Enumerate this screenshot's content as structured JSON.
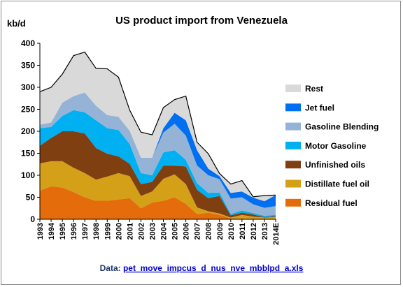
{
  "chart_data": {
    "type": "area",
    "stacked": true,
    "title": "US product import from Venezuela",
    "ylabel": "kb/d",
    "xlabel": "",
    "ylim": [
      0,
      400
    ],
    "yticks": [
      0,
      50,
      100,
      150,
      200,
      250,
      300,
      350,
      400
    ],
    "categories": [
      "1993",
      "1994",
      "1995",
      "1996",
      "1997",
      "1998",
      "1999",
      "2000",
      "2001",
      "2002",
      "2003",
      "2004",
      "2005",
      "2006",
      "2007",
      "2008",
      "2009",
      "2010",
      "2011",
      "2012",
      "2013",
      "2014E"
    ],
    "series": [
      {
        "name": "Residual fuel",
        "color": "#e46c0a",
        "values": [
          65,
          75,
          72,
          62,
          50,
          42,
          42,
          45,
          48,
          25,
          38,
          42,
          50,
          35,
          12,
          15,
          10,
          2,
          2,
          2,
          2,
          2
        ]
      },
      {
        "name": "Distillate fuel oil",
        "color": "#d4a017",
        "values": [
          62,
          57,
          60,
          55,
          55,
          48,
          55,
          60,
          50,
          28,
          25,
          50,
          52,
          45,
          15,
          3,
          3,
          2,
          8,
          4,
          2,
          3
        ]
      },
      {
        "name": "Unfinished oils",
        "color": "#7f3f10",
        "values": [
          40,
          53,
          68,
          83,
          90,
          72,
          52,
          38,
          28,
          27,
          22,
          30,
          20,
          40,
          40,
          30,
          40,
          5,
          5,
          5,
          1,
          2
        ]
      },
      {
        "name": "Motor Gasoline",
        "color": "#00b0f0",
        "values": [
          40,
          25,
          35,
          48,
          48,
          63,
          58,
          60,
          45,
          25,
          15,
          30,
          35,
          15,
          15,
          12,
          8,
          3,
          5,
          3,
          3,
          3
        ]
      },
      {
        "name": "Gasoline Blending",
        "color": "#95b3d7",
        "values": [
          8,
          10,
          30,
          32,
          45,
          33,
          30,
          30,
          30,
          35,
          40,
          45,
          60,
          55,
          40,
          40,
          30,
          35,
          30,
          20,
          18,
          20
        ]
      },
      {
        "name": "Jet fuel",
        "color": "#0070f0",
        "values": [
          0,
          0,
          0,
          0,
          0,
          0,
          0,
          0,
          0,
          0,
          0,
          10,
          25,
          35,
          35,
          15,
          7,
          13,
          13,
          15,
          15,
          25
        ]
      },
      {
        "name": "Rest",
        "color": "#d9d9d9",
        "values": [
          75,
          80,
          65,
          92,
          92,
          85,
          105,
          90,
          47,
          58,
          52,
          47,
          30,
          55,
          18,
          34,
          6,
          20,
          25,
          2,
          13,
          0
        ]
      }
    ],
    "legend": [
      "Rest",
      "Jet fuel",
      "Gasoline Blending",
      "Motor Gasoline",
      "Unfinished oils",
      "Distillate fuel oil",
      "Residual fuel"
    ],
    "legend_position": "right",
    "grid": false
  },
  "source": {
    "prefix": "Data: ",
    "link_text": "pet_move_impcus_d_nus_nve_mbblpd_a.xls"
  }
}
